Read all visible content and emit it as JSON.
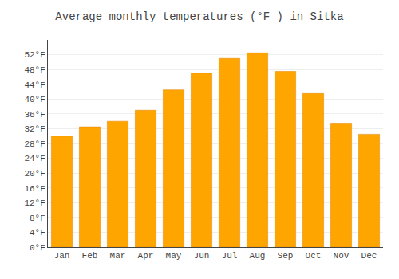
{
  "chart_data": {
    "type": "bar",
    "title": "Average monthly temperatures (°F ) in Sitka",
    "categories": [
      "Jan",
      "Feb",
      "Mar",
      "Apr",
      "May",
      "Jun",
      "Jul",
      "Aug",
      "Sep",
      "Oct",
      "Nov",
      "Dec"
    ],
    "values": [
      30.0,
      32.5,
      34.0,
      37.0,
      42.5,
      47.0,
      51.0,
      52.5,
      47.5,
      41.5,
      33.5,
      30.5
    ],
    "color": "#FFA500",
    "ylim": [
      0,
      56
    ],
    "yticks": [
      {
        "value": 0,
        "label": "0°F"
      },
      {
        "value": 4,
        "label": "4°F"
      },
      {
        "value": 8,
        "label": "8°F"
      },
      {
        "value": 12,
        "label": "12°F"
      },
      {
        "value": 16,
        "label": "16°F"
      },
      {
        "value": 20,
        "label": "20°F"
      },
      {
        "value": 24,
        "label": "24°F"
      },
      {
        "value": 28,
        "label": "28°F"
      },
      {
        "value": 32,
        "label": "32°F"
      },
      {
        "value": 36,
        "label": "36°F"
      },
      {
        "value": 40,
        "label": "40°F"
      },
      {
        "value": 44,
        "label": "44°F"
      },
      {
        "value": 48,
        "label": "48°F"
      },
      {
        "value": 52,
        "label": "52°F"
      }
    ],
    "grid": true
  }
}
